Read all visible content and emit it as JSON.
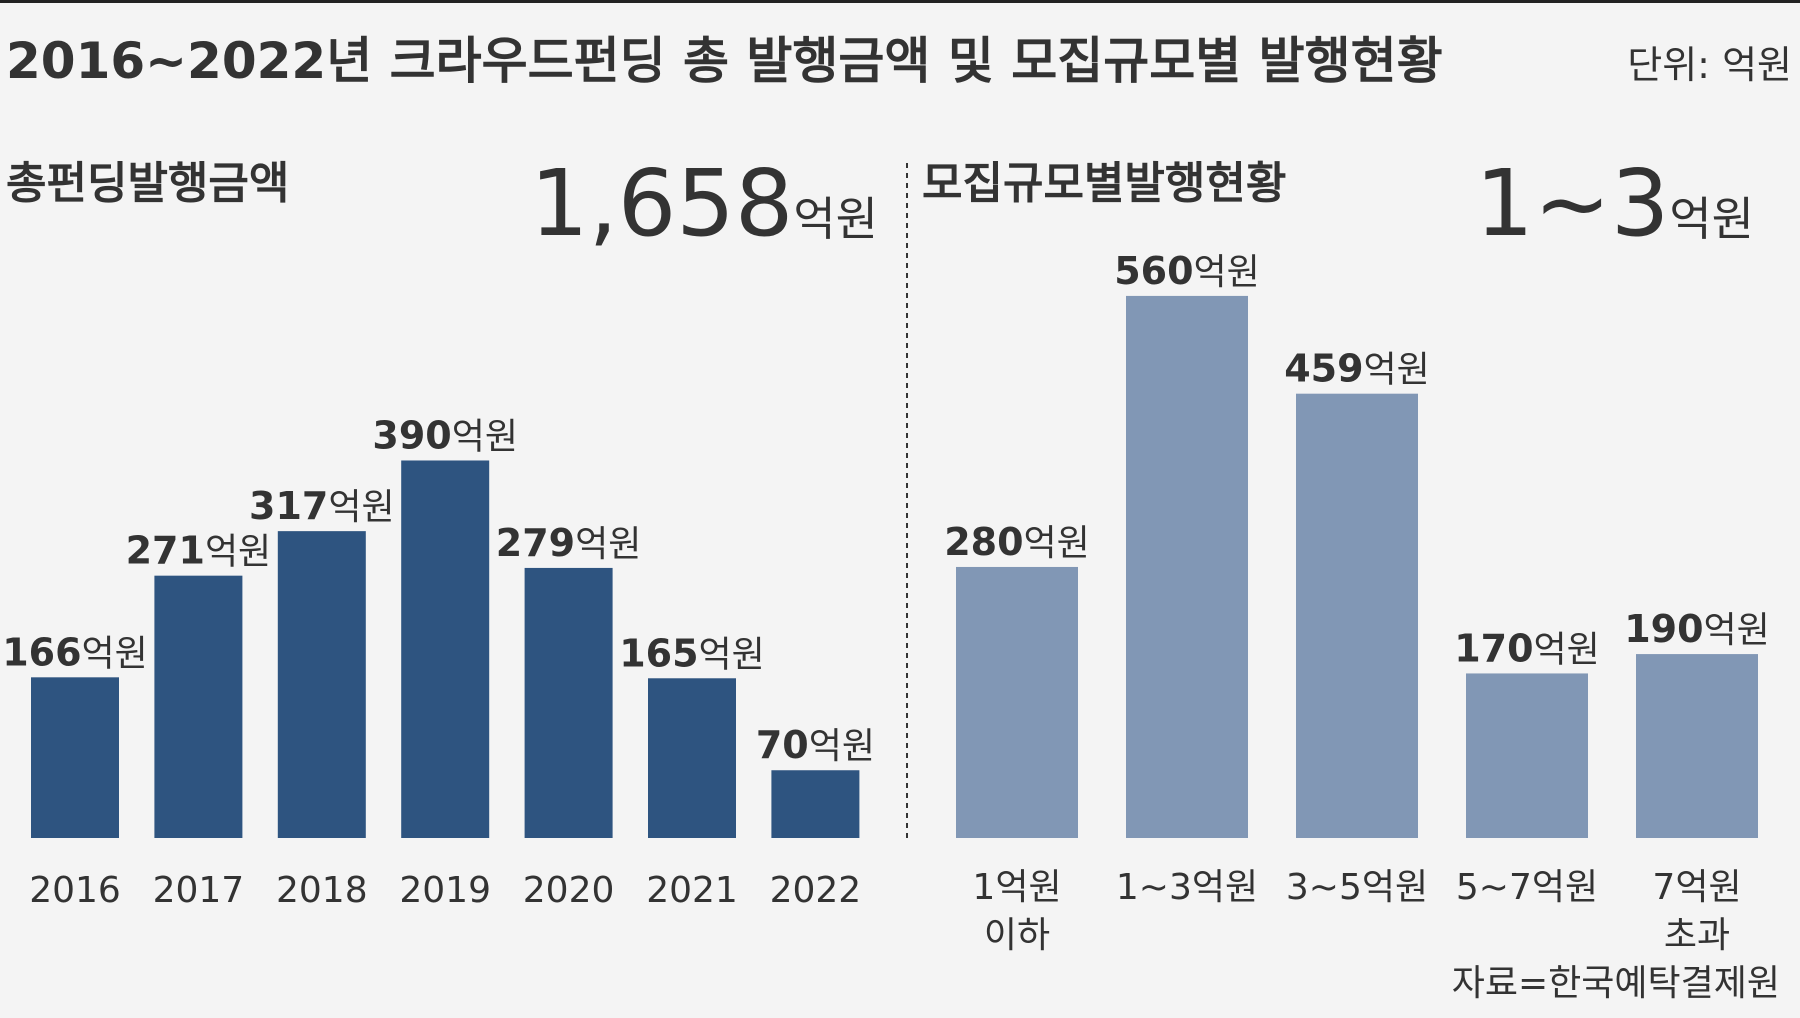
{
  "title": "2016~2022년 크라우드펀딩 총 발행금액 및 모집규모별 발행현황",
  "unit": "단위: 억원",
  "source": "자료=한국예탁결제원",
  "chart_data": [
    {
      "type": "bar",
      "title": "총펀딩발행금액",
      "highlight": "1,658억원",
      "categories": [
        "2016",
        "2017",
        "2018",
        "2019",
        "2020",
        "2021",
        "2022"
      ],
      "values": [
        166,
        271,
        317,
        390,
        279,
        165,
        70
      ],
      "value_labels": [
        "166억원",
        "271억원",
        "317억원",
        "390억원",
        "279억원",
        "165억원",
        "70억원"
      ],
      "color": "#2e5480"
    },
    {
      "type": "bar",
      "title": "모집규모별발행현황",
      "highlight": "1~3억원",
      "categories": [
        "1억원 이하",
        "1~3억원",
        "3~5억원",
        "5~7억원",
        "7억원 초과"
      ],
      "values": [
        280,
        560,
        459,
        170,
        190
      ],
      "value_labels": [
        "280억원",
        "560억원",
        "459억원",
        "170억원",
        "190억원"
      ],
      "color": "#8197b5"
    }
  ]
}
